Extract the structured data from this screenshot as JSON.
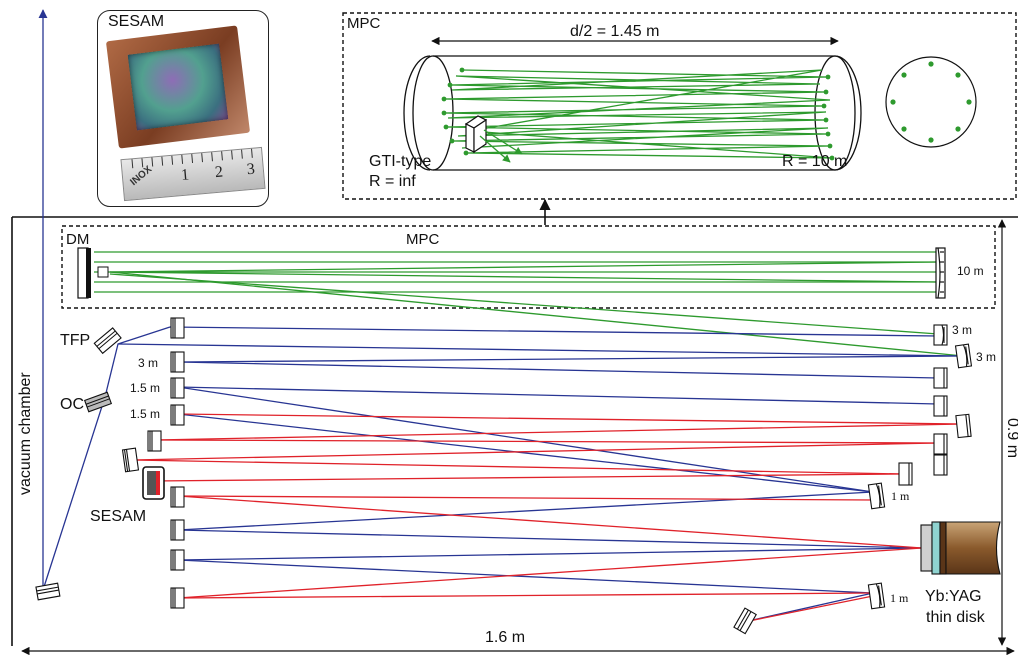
{
  "labels": {
    "sesam_photo": "SESAM",
    "ruler_1": "1",
    "ruler_2": "2",
    "ruler_3": "3",
    "ruler_brand": "INOX",
    "mpc_inset": "MPC",
    "mpc_inset_length": "d/2 = 1.45 m",
    "gti_type": "GTI-type",
    "r_inf": "R = inf",
    "r_10m": "R = 10 m",
    "dm": "DM",
    "mpc": "MPC",
    "mpc_radius": "10 m",
    "tfp": "TFP",
    "oc": "OC",
    "vacuum_chamber": "vacuum chamber",
    "sesam": "SESAM",
    "r3m_left": "3 m",
    "r15m_a": "1.5 m",
    "r15m_b": "1.5 m",
    "r3m_right_a": "3 m",
    "r3m_right_b": "3 m",
    "r1m_a": "1 m",
    "r1m_b": "1 m",
    "crystal_line1": "Yb:YAG",
    "crystal_line2": "thin disk",
    "width": "1.6 m",
    "height": "0.9 m"
  },
  "colors": {
    "green_beam": "#2e9a2e",
    "blue_beam": "#283593",
    "red_beam": "#e0222a",
    "arrow_blue": "#283593",
    "frame": "#111111"
  }
}
